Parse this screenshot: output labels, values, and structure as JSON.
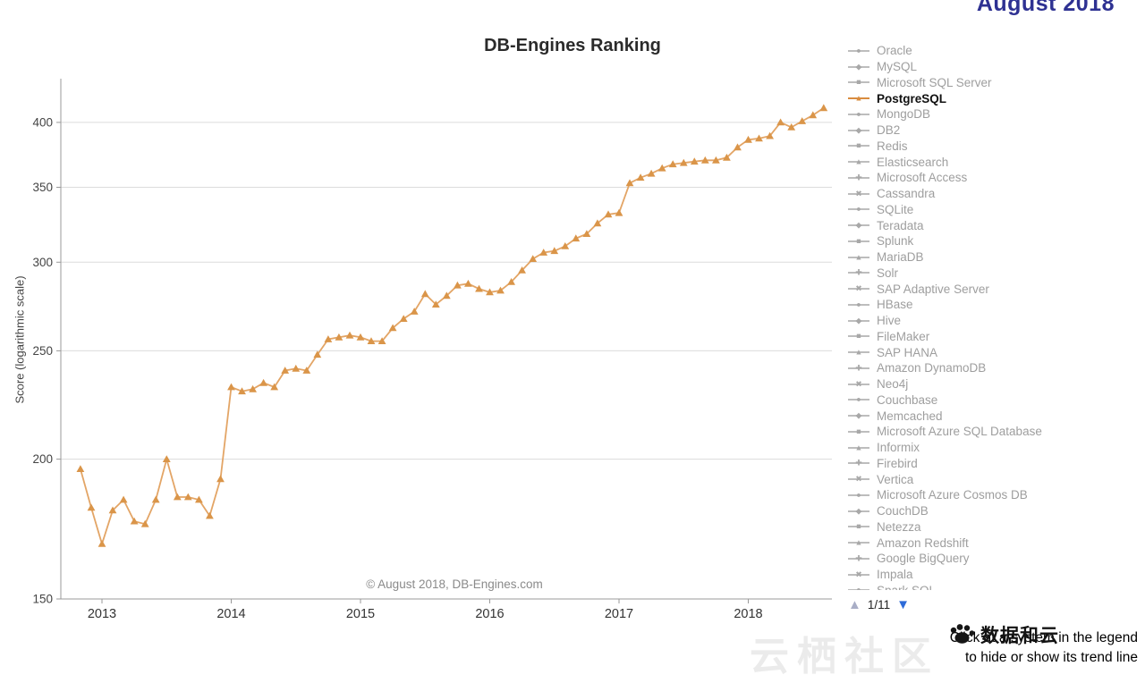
{
  "page": {
    "date_heading": "August 2018",
    "pagination": {
      "up_icon": "▲",
      "label": "1/11",
      "down_icon": "▼"
    },
    "hint_line1": "Click at a system in the legend",
    "hint_line2": "to hide or show its trend line",
    "watermark_brand": "数据和云",
    "watermark_bg": "云栖社区"
  },
  "chart_data": {
    "type": "line",
    "title": "DB-Engines Ranking",
    "ylabel": "Score (logarithmic scale)",
    "annotation": "© August 2018, DB-Engines.com",
    "y_scale": "log",
    "grid": "horizontal-only",
    "x_ticks": [
      "2013",
      "2014",
      "2015",
      "2016",
      "2017",
      "2018"
    ],
    "y_ticks": [
      150,
      200,
      250,
      300,
      350,
      400
    ],
    "ylim": [
      150,
      420
    ],
    "xlim": [
      2012.79,
      2018.67
    ],
    "series": [
      {
        "name": "PostgreSQL",
        "color": "#e3a566",
        "marker": "triangle",
        "marker_color": "#da9549",
        "start_year": 2012,
        "start_month": 11,
        "interval": "monthly",
        "values": [
          196,
          181,
          168,
          180,
          184,
          176,
          175,
          184,
          200,
          185,
          185,
          184,
          178,
          192,
          232,
          230,
          231,
          234,
          232,
          240,
          241,
          240,
          248,
          256,
          257,
          258,
          257,
          255,
          255,
          262,
          267,
          271,
          281,
          275,
          280,
          286,
          287,
          284,
          282,
          283,
          288,
          295,
          302,
          306,
          307,
          310,
          315,
          318,
          325,
          331,
          332,
          353,
          357,
          360,
          364,
          367,
          368,
          369,
          370,
          370,
          372,
          380,
          386,
          387,
          389,
          400,
          396,
          401,
          406,
          412
        ]
      }
    ]
  },
  "legend": {
    "highlight_color": "#d98c3f",
    "default_text_color": "#9e9e9e",
    "items": [
      {
        "label": "Oracle",
        "marker": "circle"
      },
      {
        "label": "MySQL",
        "marker": "diamond"
      },
      {
        "label": "Microsoft SQL Server",
        "marker": "square"
      },
      {
        "label": "PostgreSQL",
        "marker": "triangle",
        "highlight": true
      },
      {
        "label": "MongoDB",
        "marker": "circle"
      },
      {
        "label": "DB2",
        "marker": "diamond"
      },
      {
        "label": "Redis",
        "marker": "square"
      },
      {
        "label": "Elasticsearch",
        "marker": "triangle"
      },
      {
        "label": "Microsoft Access",
        "marker": "plus"
      },
      {
        "label": "Cassandra",
        "marker": "x"
      },
      {
        "label": "SQLite",
        "marker": "circle"
      },
      {
        "label": "Teradata",
        "marker": "diamond"
      },
      {
        "label": "Splunk",
        "marker": "square"
      },
      {
        "label": "MariaDB",
        "marker": "triangle"
      },
      {
        "label": "Solr",
        "marker": "plus"
      },
      {
        "label": "SAP Adaptive Server",
        "marker": "x"
      },
      {
        "label": "HBase",
        "marker": "circle"
      },
      {
        "label": "Hive",
        "marker": "diamond"
      },
      {
        "label": "FileMaker",
        "marker": "square"
      },
      {
        "label": "SAP HANA",
        "marker": "triangle"
      },
      {
        "label": "Amazon DynamoDB",
        "marker": "plus"
      },
      {
        "label": "Neo4j",
        "marker": "x"
      },
      {
        "label": "Couchbase",
        "marker": "circle"
      },
      {
        "label": "Memcached",
        "marker": "diamond"
      },
      {
        "label": "Microsoft Azure SQL Database",
        "marker": "square"
      },
      {
        "label": "Informix",
        "marker": "triangle"
      },
      {
        "label": "Firebird",
        "marker": "plus"
      },
      {
        "label": "Vertica",
        "marker": "x"
      },
      {
        "label": "Microsoft Azure Cosmos DB",
        "marker": "circle"
      },
      {
        "label": "CouchDB",
        "marker": "diamond"
      },
      {
        "label": "Netezza",
        "marker": "square"
      },
      {
        "label": "Amazon Redshift",
        "marker": "triangle"
      },
      {
        "label": "Google BigQuery",
        "marker": "plus"
      },
      {
        "label": "Impala",
        "marker": "x"
      },
      {
        "label": "Spark SQL",
        "marker": "circle"
      }
    ]
  }
}
